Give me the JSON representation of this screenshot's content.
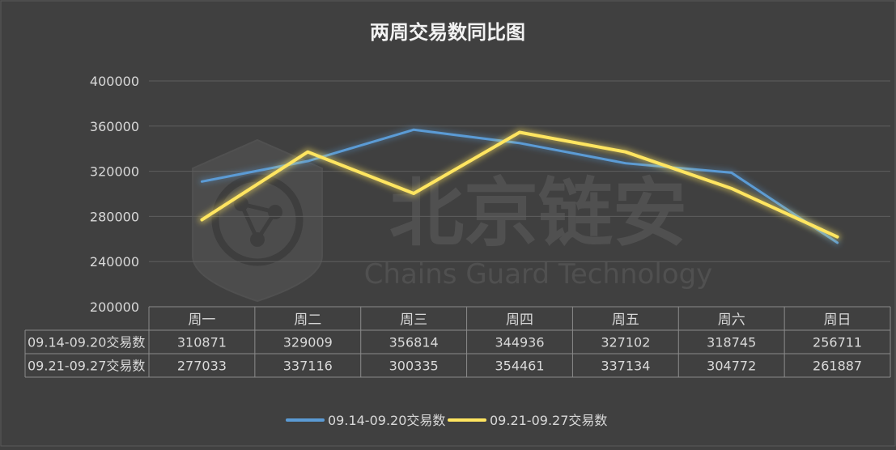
{
  "chart_data": {
    "type": "line",
    "title": "两周交易数同比图",
    "categories": [
      "周一",
      "周二",
      "周三",
      "周四",
      "周五",
      "周六",
      "周日"
    ],
    "ylim": [
      200000,
      400000
    ],
    "yticks": [
      "200000",
      "240000",
      "280000",
      "320000",
      "360000",
      "400000"
    ],
    "grid": true,
    "legend_position": "bottom",
    "series": [
      {
        "name": "09.14-09.20交易数",
        "color": "#5b9bd5",
        "values": [
          310871,
          329009,
          356814,
          344936,
          327102,
          318745,
          256711
        ]
      },
      {
        "name": "09.21-09.27交易数",
        "color": "#ffe560",
        "values": [
          277033,
          337116,
          300335,
          354461,
          337134,
          304772,
          261887
        ]
      }
    ]
  },
  "watermark": {
    "brand_cn": "北京链安",
    "brand_en": "Chains Guard Technology"
  }
}
